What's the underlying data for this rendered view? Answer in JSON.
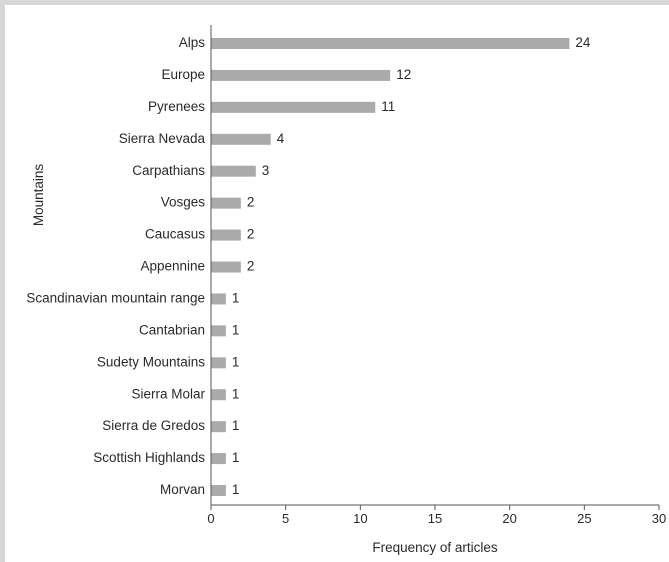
{
  "chart_data": {
    "type": "bar",
    "orientation": "horizontal",
    "categories": [
      "Alps",
      "Europe",
      "Pyrenees",
      "Sierra Nevada",
      "Carpathians",
      "Vosges",
      "Caucasus",
      "Appennine",
      "Scandinavian mountain range",
      "Cantabrian",
      "Sudety Mountains",
      "Sierra Molar",
      "Sierra de Gredos",
      "Scottish Highlands",
      "Morvan"
    ],
    "values": [
      24,
      12,
      11,
      4,
      3,
      2,
      2,
      2,
      1,
      1,
      1,
      1,
      1,
      1,
      1
    ],
    "xlabel": "Frequency of articles",
    "ylabel": "Mountains",
    "xlim": [
      0,
      30
    ],
    "xticks": [
      0,
      5,
      10,
      15,
      20,
      25,
      30
    ],
    "grid": false,
    "bar_color": "#aaaaaa",
    "data_labels": true
  }
}
